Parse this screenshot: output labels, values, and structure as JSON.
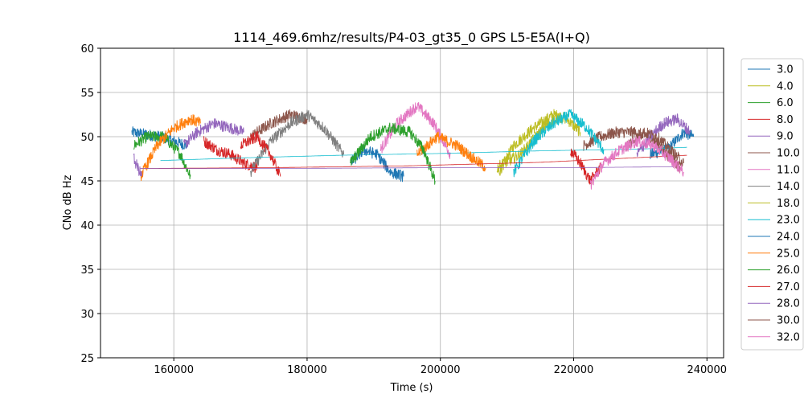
{
  "chart_data": {
    "type": "line",
    "title": "1114_469.6mhz/results/P4-03_gt35_0 GPS L5-E5A(I+Q)",
    "xlabel": "Time (s)",
    "ylabel": "CNo dB Hz",
    "xlim": [
      149000,
      242500
    ],
    "ylim": [
      25,
      60
    ],
    "xticks": [
      160000,
      180000,
      200000,
      220000,
      240000
    ],
    "yticks": [
      25,
      30,
      35,
      40,
      45,
      50,
      55,
      60
    ],
    "grid": true,
    "legend_position": "right-outside",
    "series": [
      {
        "name": "3.0",
        "color": "#1f77b4",
        "segments": [
          {
            "x": [
              153700,
              158000,
              162000
            ],
            "y": [
              50.5,
              50.0,
              49.0
            ]
          },
          {
            "x": [
              231500,
              234000,
              236500,
              238000
            ],
            "y": [
              48.0,
              48.5,
              50.5,
              50.0
            ]
          }
        ]
      },
      {
        "name": "4.0",
        "color": "#bcbd22",
        "segments": [
          {
            "x": [
              208800,
              211000,
              214000,
              217000,
              219000,
              221000
            ],
            "y": [
              46.0,
              49.0,
              51.0,
              52.5,
              52.0,
              50.5
            ]
          }
        ]
      },
      {
        "name": "6.0",
        "color": "#2ca02c",
        "segments": [
          {
            "x": [
              154000,
              156000,
              158500,
              161000,
              162500
            ],
            "y": [
              49.0,
              50.0,
              50.0,
              48.0,
              45.5
            ]
          }
        ]
      },
      {
        "name": "8.0",
        "color": "#d62728",
        "segments": [
          {
            "x": [
              164500,
              166500,
              168500,
              170500,
              172500
            ],
            "y": [
              49.5,
              48.5,
              48.0,
              47.0,
              46.5
            ]
          }
        ]
      },
      {
        "name": "9.0",
        "color": "#9467bd",
        "segments": [
          {
            "x": [
              161500,
              163500,
              166000,
              168500,
              170500
            ],
            "y": [
              49.0,
              50.5,
              51.5,
              51.0,
              50.5
            ]
          }
        ]
      },
      {
        "name": "10.0",
        "color": "#8c564b",
        "segments": [
          {
            "x": [
              171500,
              174500,
              177500,
              180000
            ],
            "y": [
              50.0,
              51.5,
              52.5,
              52.0
            ]
          },
          {
            "x": [
              221500,
              224000,
              226500,
              229000,
              231500,
              234000,
              236000
            ],
            "y": [
              49.0,
              50.0,
              50.5,
              50.5,
              50.0,
              48.0,
              46.5
            ]
          }
        ]
      },
      {
        "name": "11.0",
        "color": "#e377c2",
        "segments": [
          {
            "x": [
              191000,
              193500,
              196500,
              199000,
              201500
            ],
            "y": [
              48.5,
              51.5,
              53.5,
              51.5,
              48.0
            ]
          }
        ]
      },
      {
        "name": "14.0",
        "color": "#7f7f7f",
        "segments": [
          {
            "x": [
              171500,
              174500,
              177500,
              180000,
              182500,
              185500
            ],
            "y": [
              46.0,
              49.5,
              51.5,
              52.5,
              51.0,
              48.0
            ]
          }
        ]
      },
      {
        "name": "18.0",
        "color": "#bcbd22",
        "segments": [
          {
            "x": [
              208500,
              212000,
              215500,
              218000
            ],
            "y": [
              46.5,
              48.0,
              51.0,
              52.5
            ]
          }
        ]
      },
      {
        "name": "23.0",
        "color": "#17becf",
        "segments": [
          {
            "x": [
              158000,
              170000,
              185000,
              200000,
              215000,
              230000,
              237000
            ],
            "y": [
              47.3,
              47.6,
              47.9,
              48.1,
              48.4,
              48.6,
              48.8
            ]
          },
          {
            "x": [
              211000,
              214000,
              217000,
              219500,
              222000,
              224500
            ],
            "y": [
              46.0,
              49.5,
              51.5,
              52.5,
              51.0,
              48.5
            ]
          }
        ]
      },
      {
        "name": "24.0",
        "color": "#1f77b4",
        "segments": [
          {
            "x": [
              186500,
              188500,
              190500,
              192500,
              194500
            ],
            "y": [
              47.0,
              48.5,
              48.0,
              46.0,
              45.5
            ]
          }
        ]
      },
      {
        "name": "25.0",
        "color": "#ff7f0e",
        "segments": [
          {
            "x": [
              155000,
              157500,
              160000,
              162500,
              164000
            ],
            "y": [
              45.5,
              49.0,
              51.0,
              52.0,
              51.5
            ]
          },
          {
            "x": [
              196500,
              199500,
              202500,
              205000,
              206800
            ],
            "y": [
              48.0,
              50.0,
              49.0,
              47.5,
              46.5
            ]
          }
        ]
      },
      {
        "name": "26.0",
        "color": "#2ca02c",
        "segments": [
          {
            "x": [
              186500,
              189500,
              192500,
              195500,
              197500,
              199200
            ],
            "y": [
              47.0,
              50.0,
              51.0,
              50.5,
              48.5,
              45.0
            ]
          }
        ]
      },
      {
        "name": "27.0",
        "color": "#d62728",
        "segments": [
          {
            "x": [
              170000,
              172500,
              174500,
              176000
            ],
            "y": [
              49.0,
              50.0,
              48.0,
              45.5
            ]
          },
          {
            "x": [
              155000,
              175000,
              195000,
              215000,
              237000
            ],
            "y": [
              46.4,
              46.5,
              46.7,
              47.1,
              47.9
            ]
          },
          {
            "x": [
              219500,
              221000,
              222500,
              224000
            ],
            "y": [
              48.5,
              47.0,
              45.0,
              46.5
            ]
          }
        ]
      },
      {
        "name": "28.0",
        "color": "#9467bd",
        "segments": [
          {
            "x": [
              154000,
              155200
            ],
            "y": [
              47.5,
              45.5
            ]
          },
          {
            "x": [
              155000,
              175000,
              200000,
              220000,
              235000
            ],
            "y": [
              46.4,
              46.4,
              46.5,
              46.5,
              46.6
            ]
          },
          {
            "x": [
              229500,
              231500,
              233500,
              235500,
              237500
            ],
            "y": [
              48.0,
              50.0,
              51.5,
              52.0,
              50.5
            ]
          }
        ]
      },
      {
        "name": "30.0",
        "color": "#8c564b",
        "segments": [
          {
            "x": [
              228000,
              230500,
              232500,
              234500,
              236500
            ],
            "y": [
              49.0,
              50.5,
              50.0,
              48.5,
              47.0
            ]
          }
        ]
      },
      {
        "name": "32.0",
        "color": "#e377c2",
        "segments": [
          {
            "x": [
              222500,
              224500,
              227000,
              229500,
              232000,
              234500,
              236500
            ],
            "y": [
              44.5,
              47.0,
              48.5,
              49.5,
              49.0,
              47.5,
              46.0
            ]
          }
        ]
      }
    ]
  }
}
